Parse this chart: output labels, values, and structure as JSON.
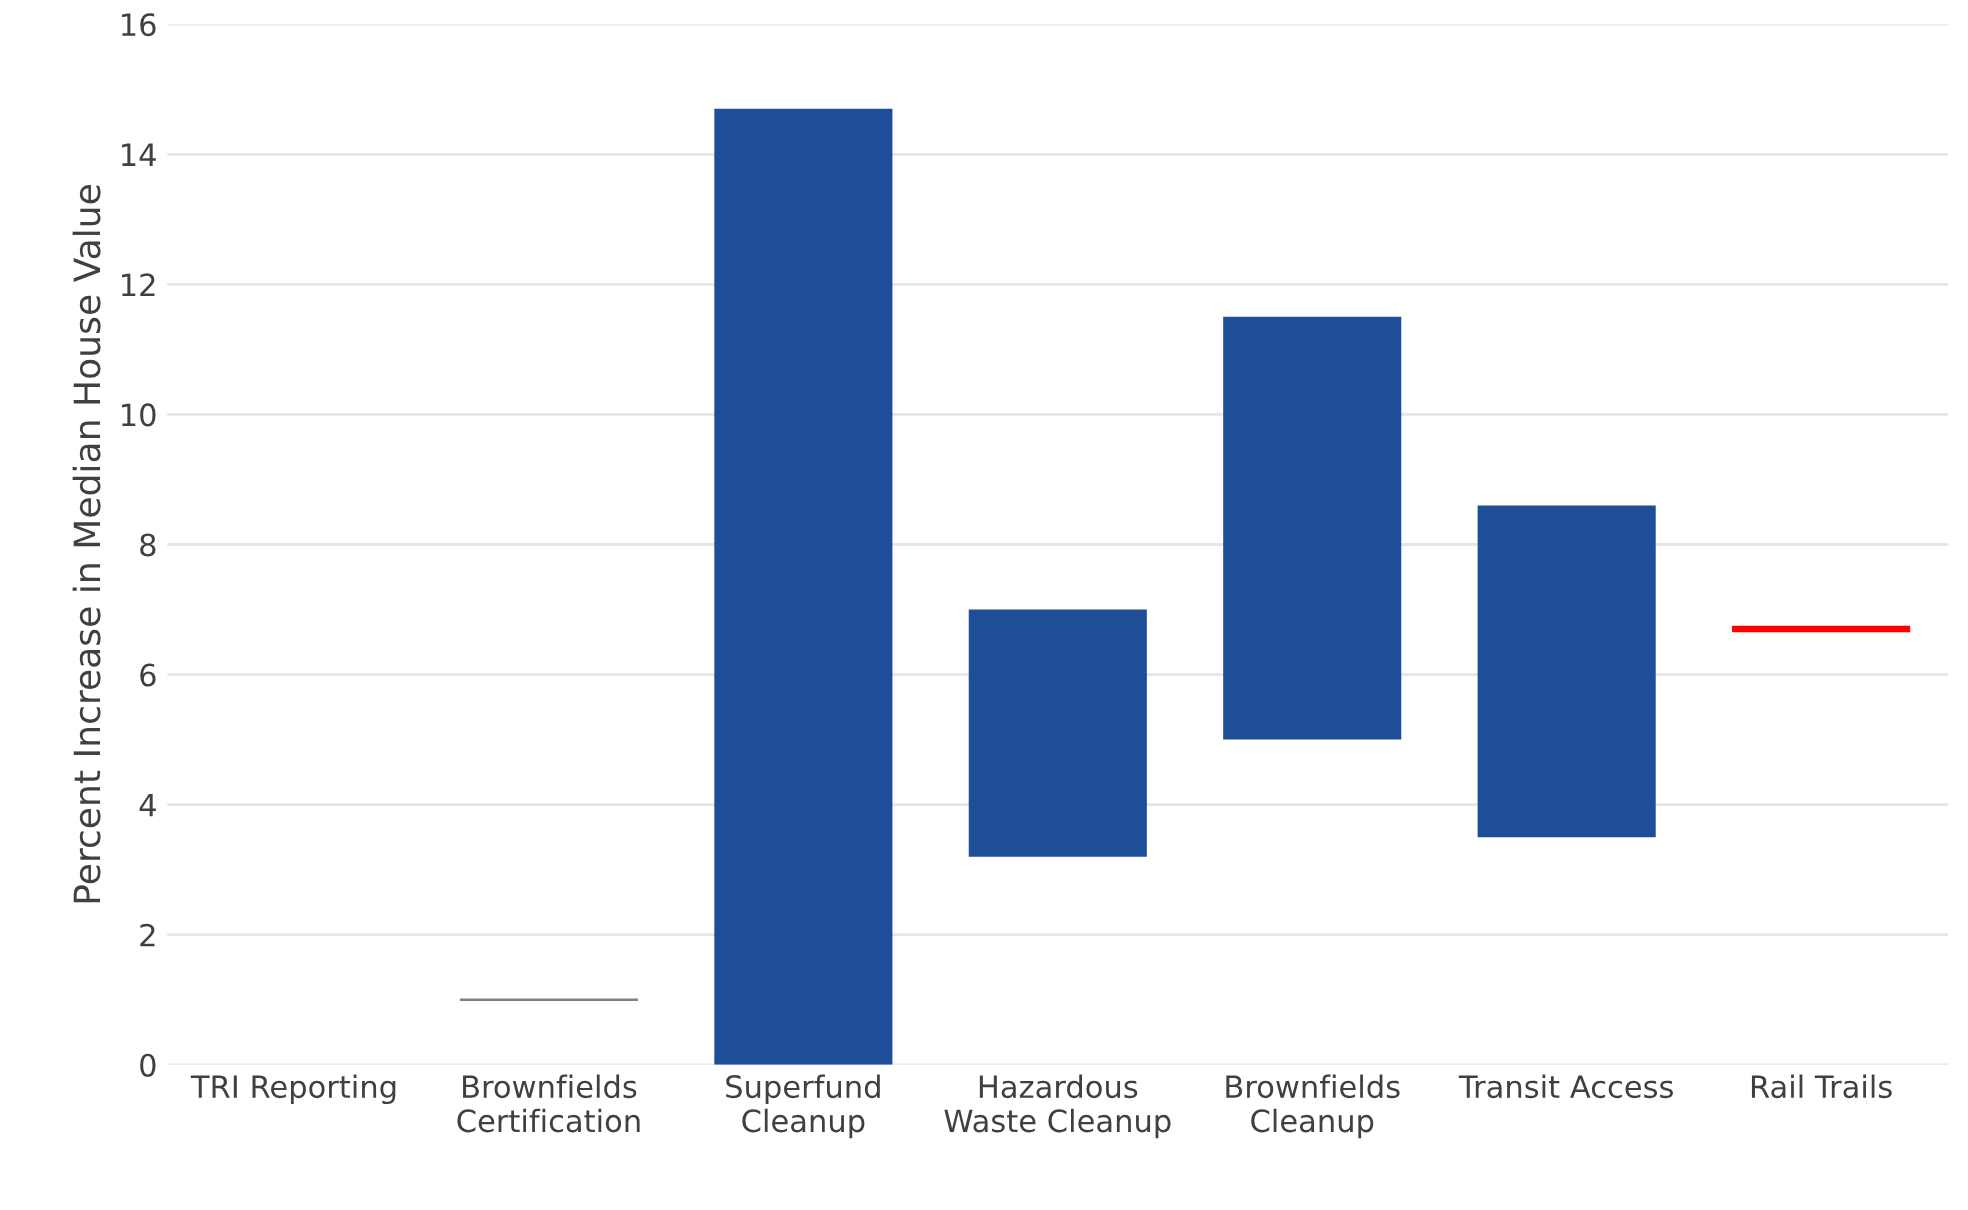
{
  "chart_data": {
    "type": "bar",
    "ylabel": "Percent Increase in Median House Value",
    "categories": [
      "TRI Reporting",
      "Brownfields\nCertification",
      "Superfund\nCleanup",
      "Hazardous\nWaste Cleanup",
      "Brownfields\nCleanup",
      "Transit Access",
      "Rail Trails"
    ],
    "base": [
      null,
      0.98,
      0,
      3.2,
      5.0,
      3.5,
      6.65
    ],
    "values": [
      null,
      0.04,
      14.7,
      3.8,
      6.5,
      5.1,
      0.1
    ],
    "colors": [
      "#1f4e99",
      "#808080",
      "#1f4e99",
      "#1f4e99",
      "#1f4e99",
      "#1f4e99",
      "#ff0000"
    ],
    "ylim": [
      0,
      16
    ],
    "yticks": [
      0,
      2,
      4,
      6,
      8,
      10,
      12,
      14,
      16
    ],
    "grid": "y"
  }
}
